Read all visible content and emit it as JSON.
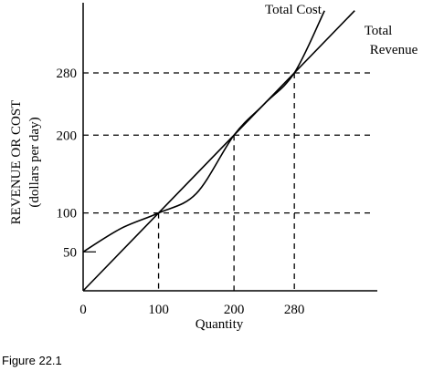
{
  "chart_data": {
    "type": "line",
    "xlabel": "Quantity",
    "ylabel": [
      "REVENUE OR COST",
      "(dollars per day)"
    ],
    "xlim": [
      0,
      350
    ],
    "ylim": [
      0,
      360
    ],
    "x_ticks": [
      0,
      100,
      200,
      280
    ],
    "y_ticks": [
      50,
      100,
      200,
      280
    ],
    "grid": false,
    "reference_lines": {
      "horizontal": [
        100,
        200,
        280
      ],
      "vertical": [
        100,
        200,
        280
      ],
      "style": "dashed"
    },
    "series": [
      {
        "name": "Total Revenue",
        "label_lines": [
          "Total",
          "Revenue"
        ],
        "x": [
          0,
          100,
          200,
          280,
          360
        ],
        "y": [
          0,
          100,
          200,
          280,
          360
        ]
      },
      {
        "name": "Total Cost",
        "label_lines": [
          "Total Cost"
        ],
        "x": [
          0,
          50,
          100,
          150,
          200,
          240,
          280,
          320
        ],
        "y": [
          50,
          80,
          100,
          125,
          200,
          240,
          280,
          360
        ]
      }
    ]
  },
  "caption": "Figure 22.1"
}
